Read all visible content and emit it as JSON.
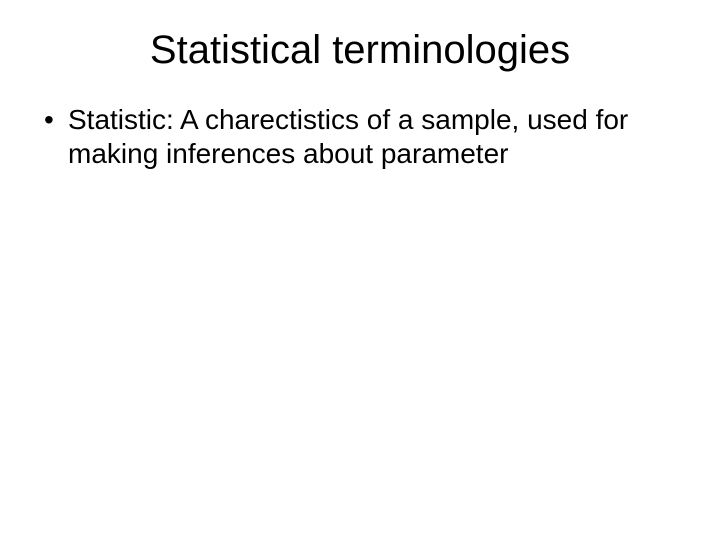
{
  "slide": {
    "title": "Statistical terminologies",
    "bullets": [
      "Statistic: A charectistics of a sample, used for making inferences about parameter"
    ],
    "style": {
      "background_color": "#ffffff",
      "text_color": "#000000",
      "title_fontsize": 40,
      "body_fontsize": 28,
      "font_family": "Arial"
    }
  }
}
